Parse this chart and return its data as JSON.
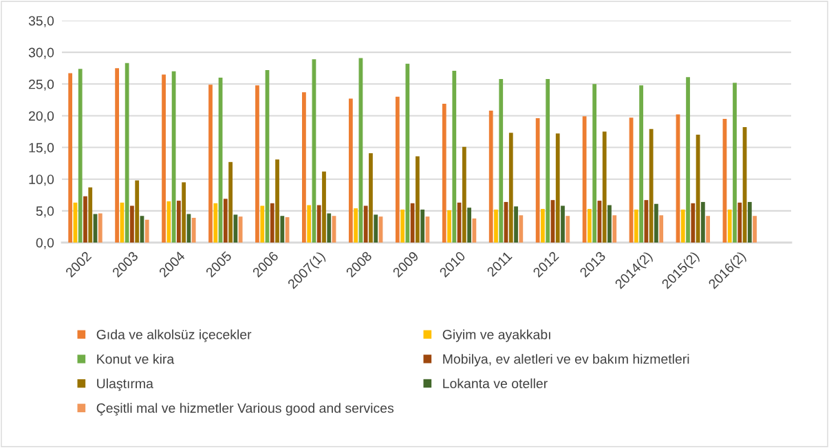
{
  "chart_data": {
    "type": "bar",
    "categories": [
      "2002",
      "2003",
      "2004",
      "2005",
      "2006",
      "2007(1)",
      "2008",
      "2009",
      "2010",
      "2011",
      "2012",
      "2013",
      "2014(2)",
      "2015(2)",
      "2016(2)"
    ],
    "series": [
      {
        "name": "Gıda ve alkolsüz içecekler",
        "color": "#ed7d31",
        "values": [
          26.7,
          27.5,
          26.5,
          24.9,
          24.8,
          23.7,
          22.7,
          23.0,
          21.9,
          20.8,
          19.6,
          19.9,
          19.7,
          20.2,
          19.5
        ]
      },
      {
        "name": "Giyim ve ayakkabı",
        "color": "#ffc000",
        "values": [
          6.3,
          6.3,
          6.5,
          6.2,
          5.8,
          5.9,
          5.4,
          5.2,
          5.1,
          5.2,
          5.3,
          5.3,
          5.2,
          5.2,
          5.2
        ]
      },
      {
        "name": "Konut ve kira",
        "color": "#70ad47",
        "values": [
          27.4,
          28.3,
          27.0,
          26.0,
          27.2,
          28.9,
          29.1,
          28.2,
          27.1,
          25.8,
          25.8,
          25.0,
          24.8,
          26.1,
          25.2
        ]
      },
      {
        "name": "Mobilya, ev aletleri ve ev bakım hizmetleri",
        "color": "#9e480e",
        "values": [
          7.3,
          5.8,
          6.6,
          6.9,
          6.2,
          5.9,
          5.8,
          6.2,
          6.3,
          6.4,
          6.7,
          6.6,
          6.7,
          6.2,
          6.3
        ]
      },
      {
        "name": "Ulaştırma",
        "color": "#997300",
        "values": [
          8.7,
          9.8,
          9.5,
          12.7,
          13.1,
          11.2,
          14.1,
          13.6,
          15.1,
          17.3,
          17.2,
          17.5,
          17.9,
          17.0,
          18.2
        ]
      },
      {
        "name": "Lokanta ve oteller",
        "color": "#43682b",
        "values": [
          4.5,
          4.2,
          4.5,
          4.4,
          4.2,
          4.6,
          4.4,
          5.2,
          5.5,
          5.7,
          5.8,
          5.9,
          6.1,
          6.4,
          6.4
        ]
      },
      {
        "name": "Çeşitli mal ve hizmetler Various good and services",
        "color": "#f1975a",
        "values": [
          4.6,
          3.6,
          3.9,
          4.1,
          4.0,
          4.2,
          4.1,
          4.1,
          3.8,
          4.3,
          4.2,
          4.3,
          4.3,
          4.2,
          4.2
        ]
      }
    ],
    "ylim": [
      0,
      35
    ],
    "yticks": [
      {
        "value": 0,
        "label": "0,0"
      },
      {
        "value": 5,
        "label": "5,0"
      },
      {
        "value": 10,
        "label": "10,0"
      },
      {
        "value": 15,
        "label": "15,0"
      },
      {
        "value": 20,
        "label": "20,0"
      },
      {
        "value": 25,
        "label": "25,0"
      },
      {
        "value": 30,
        "label": "30,0"
      },
      {
        "value": 35,
        "label": "35,0"
      }
    ],
    "grid": "y",
    "legend": "bottom"
  }
}
